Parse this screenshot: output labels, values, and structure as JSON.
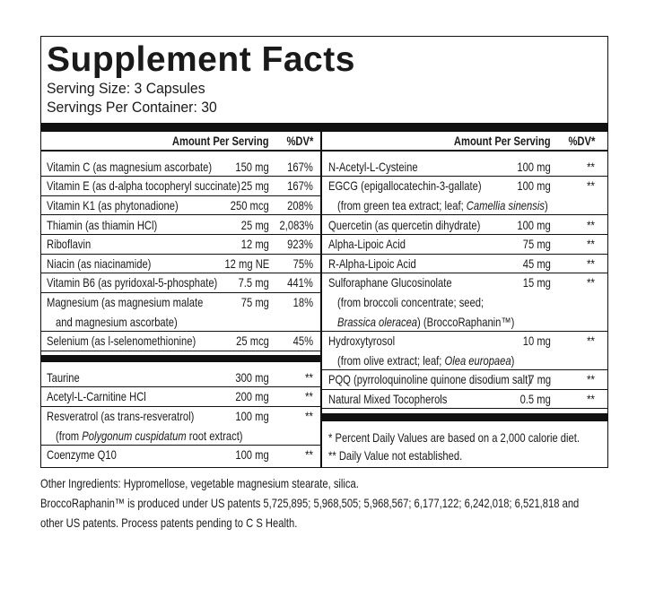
{
  "title": "Supplement Facts",
  "serving_size": "Serving Size: 3 Capsules",
  "servings_per_container": "Servings Per Container: 30",
  "columns": [
    {
      "headers": [
        "Amount Per Serving",
        "%DV*"
      ],
      "groups": [
        [
          {
            "name": [
              [
                "Vitamin C (as magnesium ascorbate)"
              ]
            ],
            "amount": "150 mg",
            "dv": "167%"
          },
          {
            "name": [
              [
                "Vitamin E (as d-alpha tocopheryl succinate)"
              ]
            ],
            "amount": "25 mg",
            "dv": "167%"
          },
          {
            "name": [
              [
                "Vitamin K1 (as phytonadione)"
              ]
            ],
            "amount": "250 mcg",
            "dv": "208%"
          },
          {
            "name": [
              [
                "Thiamin (as thiamin HCl)"
              ]
            ],
            "amount": "25 mg",
            "dv": "2,083%"
          },
          {
            "name": [
              [
                "Riboflavin"
              ]
            ],
            "amount": "12 mg",
            "dv": "923%"
          },
          {
            "name": [
              [
                "Niacin (as niacinamide)"
              ]
            ],
            "amount": "12 mg NE",
            "dv": "75%"
          },
          {
            "name": [
              [
                "Vitamin B6 (as pyridoxal-5-phosphate)"
              ]
            ],
            "amount": "7.5 mg",
            "dv": "441%"
          },
          {
            "name": [
              [
                "Magnesium (as magnesium malate"
              ],
              [
                "and magnesium ascorbate)"
              ]
            ],
            "amount": "75 mg",
            "dv": "18%"
          },
          {
            "name": [
              [
                "Selenium (as l-selenomethionine)"
              ]
            ],
            "amount": "25 mcg",
            "dv": "45%"
          }
        ],
        [
          {
            "name": [
              [
                "Taurine"
              ]
            ],
            "amount": "300 mg",
            "dv": "**"
          },
          {
            "name": [
              [
                "Acetyl-L-Carnitine HCl"
              ]
            ],
            "amount": "200 mg",
            "dv": "**"
          },
          {
            "name": [
              [
                "Resveratrol (as trans-resveratrol)"
              ],
              [
                "(from ",
                "Polygonum cuspidatum",
                " root extract)"
              ]
            ],
            "amount": "100 mg",
            "dv": "**"
          },
          {
            "name": [
              [
                "Coenzyme Q10"
              ]
            ],
            "amount": "100 mg",
            "dv": "**"
          }
        ]
      ]
    },
    {
      "headers": [
        "Amount Per Serving",
        "%DV*"
      ],
      "groups": [
        [
          {
            "name": [
              [
                "N-Acetyl-L-Cysteine"
              ]
            ],
            "amount": "100 mg",
            "dv": "**"
          },
          {
            "name": [
              [
                "EGCG (epigallocatechin-3-gallate)"
              ],
              [
                "(from green tea extract; leaf; ",
                "Camellia sinensis",
                ")"
              ]
            ],
            "amount": "100 mg",
            "dv": "**"
          },
          {
            "name": [
              [
                "Quercetin (as quercetin dihydrate)"
              ]
            ],
            "amount": "100 mg",
            "dv": "**"
          },
          {
            "name": [
              [
                "Alpha-Lipoic Acid"
              ]
            ],
            "amount": "75 mg",
            "dv": "**"
          },
          {
            "name": [
              [
                "R-Alpha-Lipoic Acid"
              ]
            ],
            "amount": "45 mg",
            "dv": "**"
          },
          {
            "name": [
              [
                "Sulforaphane Glucosinolate"
              ],
              [
                "(from broccoli concentrate; seed;"
              ],
              [
                "",
                "Brassica oleracea",
                ") (BroccoRaphanin™)"
              ]
            ],
            "amount": "15 mg",
            "dv": "**"
          },
          {
            "name": [
              [
                "Hydroxytyrosol"
              ],
              [
                "(from olive extract; leaf; ",
                "Olea europaea",
                ")"
              ]
            ],
            "amount": "10 mg",
            "dv": "**"
          },
          {
            "name": [
              [
                "PQQ (pyrroloquinoline quinone disodium salt)"
              ]
            ],
            "amount": "7 mg",
            "dv": "**"
          },
          {
            "name": [
              [
                "Natural Mixed Tocopherols"
              ]
            ],
            "amount": "0.5 mg",
            "dv": "**"
          }
        ]
      ]
    }
  ],
  "footnotes": [
    "* Percent Daily Values are based on a 2,000 calorie diet.",
    "** Daily Value not established."
  ],
  "notes": [
    "Other Ingredients: Hypromellose, vegetable magnesium stearate, silica.",
    "BroccoRaphanin™ is produced under US patents 5,725,895; 5,968,505; 5,968,567; 6,177,122; 6,242,018; 6,521,818 and",
    "other US patents. Process patents pending to C S Health."
  ]
}
